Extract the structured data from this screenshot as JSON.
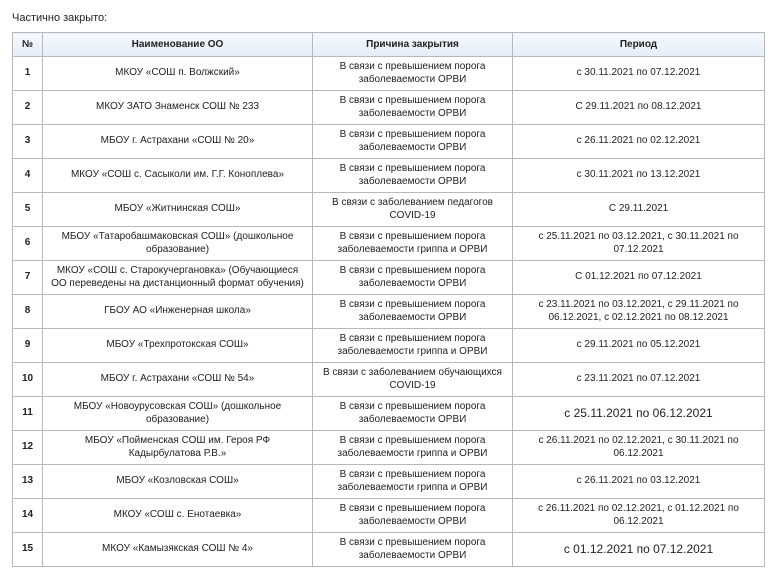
{
  "title": "Частично закрыто:",
  "columns": {
    "num": "№",
    "name": "Наименование ОО",
    "reason": "Причина закрытия",
    "period": "Период"
  },
  "rows": [
    {
      "num": "1",
      "name": "МКОУ «СОШ п. Волжский»",
      "reason": "В связи с превышением порога заболеваемости ОРВИ",
      "period": "с 30.11.2021 по 07.12.2021",
      "period_large": false
    },
    {
      "num": "2",
      "name": "МКОУ ЗАТО Знаменск СОШ № 233",
      "reason": "В связи с превышением порога заболеваемости ОРВИ",
      "period": "С 29.11.2021 по 08.12.2021",
      "period_large": false
    },
    {
      "num": "3",
      "name": "МБОУ г. Астрахани «СОШ № 20»",
      "reason": "В связи с превышением порога заболеваемости ОРВИ",
      "period": "с 26.11.2021 по 02.12.2021",
      "period_large": false
    },
    {
      "num": "4",
      "name": "МКОУ «СОШ с. Сасыколи им. Г.Г. Коноплева»",
      "reason": "В связи с превышением порога заболеваемости ОРВИ",
      "period": "с 30.11.2021 по 13.12.2021",
      "period_large": false
    },
    {
      "num": "5",
      "name": "МБОУ «Житнинская СОШ»",
      "reason": "В связи с заболеванием педагогов COVID-19",
      "period": "С 29.11.2021",
      "period_large": false
    },
    {
      "num": "6",
      "name": "МБОУ «Татаробашмаковская СОШ» (дошкольное образование)",
      "reason": "В связи с превышением порога заболеваемости гриппа и ОРВИ",
      "period": "с 25.11.2021 по 03.12.2021, с 30.11.2021 по 07.12.2021",
      "period_large": false
    },
    {
      "num": "7",
      "name": "МКОУ «СОШ с. Старокучергановка» (Обучающиеся ОО переведены на дистанционный формат обучения)",
      "reason": "В связи с превышением порога заболеваемости ОРВИ",
      "period": "С 01.12.2021 по 07.12.2021",
      "period_large": false
    },
    {
      "num": "8",
      "name": "ГБОУ АО «Инженерная школа»",
      "reason": "В связи с превышением порога заболеваемости ОРВИ",
      "period": "с 23.11.2021 по 03.12.2021, с 29.11.2021 по 06.12.2021, с 02.12.2021 по 08.12.2021",
      "period_large": false
    },
    {
      "num": "9",
      "name": "МБОУ «Трехпротокская СОШ»",
      "reason": "В связи с превышением порога заболеваемости гриппа и ОРВИ",
      "period": "с 29.11.2021 по 05.12.2021",
      "period_large": false
    },
    {
      "num": "10",
      "name": "МБОУ г. Астрахани «СОШ № 54»",
      "reason": "В связи с заболеванием обучающихся COVID-19",
      "period": "с 23.11.2021 по 07.12.2021",
      "period_large": false
    },
    {
      "num": "11",
      "name": "МБОУ «Новоурусовская СОШ» (дошкольное образование)",
      "reason": "В связи с превышением порога заболеваемости ОРВИ",
      "period": "с 25.11.2021 по 06.12.2021",
      "period_large": true
    },
    {
      "num": "12",
      "name": "МБОУ «Пойменская СОШ им. Героя РФ Кадырбулатова Р.В.»",
      "reason": "В связи с превышением порога заболеваемости гриппа и ОРВИ",
      "period": "с 26.11.2021 по 02.12.2021, с 30.11.2021 по 06.12.2021",
      "period_large": false
    },
    {
      "num": "13",
      "name": "МБОУ «Козловская СОШ»",
      "reason": "В связи с превышением порога заболеваемости гриппа и ОРВИ",
      "period": "с 26.11.2021 по 03.12.2021",
      "period_large": false
    },
    {
      "num": "14",
      "name": "МКОУ «СОШ с. Енотаевка»",
      "reason": "В связи с превышением порога заболеваемости ОРВИ",
      "period": "с 26.11.2021 по 02.12.2021, с 01.12.2021 по 06.12.2021",
      "period_large": false
    },
    {
      "num": "15",
      "name": "МКОУ «Камызякская СОШ № 4»",
      "reason": "В связи с превышением порога заболеваемости ОРВИ",
      "period": "с 01.12.2021 по 07.12.2021",
      "period_large": true
    }
  ],
  "colors": {
    "border": "#b8b8b8",
    "header_bg_top": "#f5f9ff",
    "header_bg_bottom": "#e6edf7",
    "cell_bg": "#ffffff",
    "text": "#222222"
  }
}
